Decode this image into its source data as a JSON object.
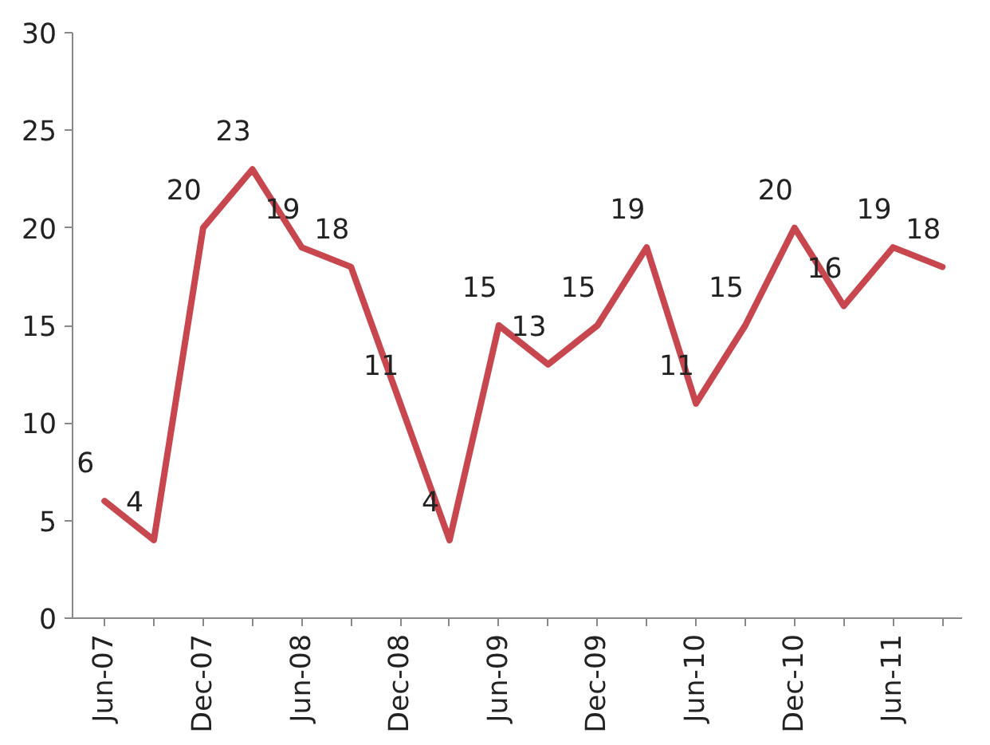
{
  "chart_data": {
    "type": "line",
    "categories": [
      "Jun-07",
      null,
      "Dec-07",
      null,
      "Jun-08",
      null,
      "Dec-08",
      null,
      "Jun-09",
      null,
      "Dec-09",
      null,
      "Jun-10",
      null,
      "Dec-10",
      null,
      "Jun-11",
      null
    ],
    "series": [
      {
        "color": "#c8474f",
        "values": [
          6,
          4,
          20,
          23,
          19,
          18,
          11,
          4,
          15,
          13,
          15,
          19,
          11,
          15,
          20,
          16,
          19,
          18
        ]
      }
    ],
    "ylim": [
      0,
      30
    ],
    "yticks": [
      0,
      5,
      10,
      15,
      20,
      25,
      30
    ],
    "data_labels": true,
    "grid": false,
    "marker": "none",
    "line_style": "solid"
  }
}
